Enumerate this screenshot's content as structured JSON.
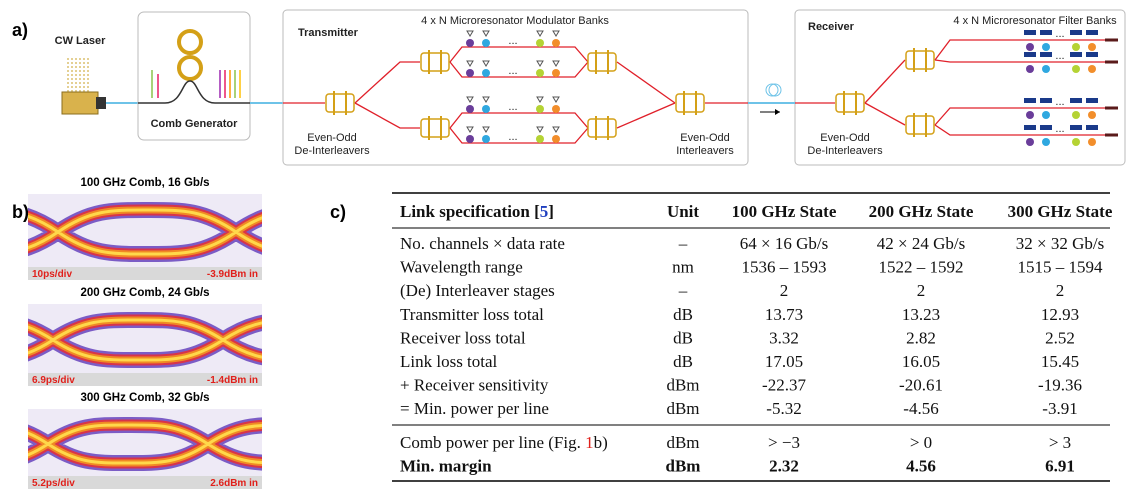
{
  "panel_labels": [
    "a)",
    "b)",
    "c)"
  ],
  "diagram": {
    "laser": "CW Laser",
    "comb": "Comb Generator",
    "transmitter": "Transmitter",
    "modulator_banks": "4 x N Microresonator Modulator Banks",
    "tx_deinterleavers": [
      "Even-Odd",
      "De-Interleavers"
    ],
    "tx_interleavers": [
      "Even-Odd",
      "Interleavers"
    ],
    "receiver": "Receiver",
    "filter_banks": "4 x N Microresonator Filter Banks",
    "rx_deinterleavers": [
      "Even-Odd",
      "De-Interleavers"
    ],
    "ellipsis": "..."
  },
  "eye_diagrams": [
    {
      "title": "100 GHz Comb, 16 Gb/s",
      "timebase": "10ps/div",
      "power": "-3.9dBm in"
    },
    {
      "title": "200 GHz Comb, 24 Gb/s",
      "timebase": "6.9ps/div",
      "power": "-1.4dBm in"
    },
    {
      "title": "300 GHz Comb, 32 Gb/s",
      "timebase": "5.2ps/div",
      "power": "2.6dBm in"
    }
  ],
  "table": {
    "header": [
      [
        "Link specification [",
        "5",
        "]"
      ],
      "Unit",
      "100 GHz State",
      "200 GHz State",
      "300 GHz State"
    ],
    "rows": [
      [
        "No. channels × data rate",
        "–",
        "64 × 16 Gb/s",
        "42 × 24 Gb/s",
        "32 × 32 Gb/s"
      ],
      [
        "Wavelength range",
        "nm",
        "1536 – 1593",
        "1522 – 1592",
        "1515 – 1594"
      ],
      [
        "(De) Interleaver stages",
        "–",
        "2",
        "2",
        "2"
      ],
      [
        "Transmitter loss total",
        "dB",
        "13.73",
        "13.23",
        "12.93"
      ],
      [
        "Receiver loss total",
        "dB",
        "3.32",
        "2.82",
        "2.52"
      ],
      [
        "Link loss total",
        "dB",
        "17.05",
        "16.05",
        "15.45"
      ],
      [
        "+ Receiver sensitivity",
        "dBm",
        "-22.37",
        "-20.61",
        "-19.36"
      ],
      [
        "= Min. power per line",
        "dBm",
        "-5.32",
        "-4.56",
        "-3.91"
      ]
    ],
    "summary_rows": [
      [
        [
          "Comb power per line (Fig. ",
          "1",
          "b)"
        ],
        "dBm",
        "> −3",
        "> 0",
        "> 3"
      ],
      [
        "Min. margin",
        "dBm",
        "2.32",
        "4.56",
        "6.91"
      ]
    ]
  }
}
